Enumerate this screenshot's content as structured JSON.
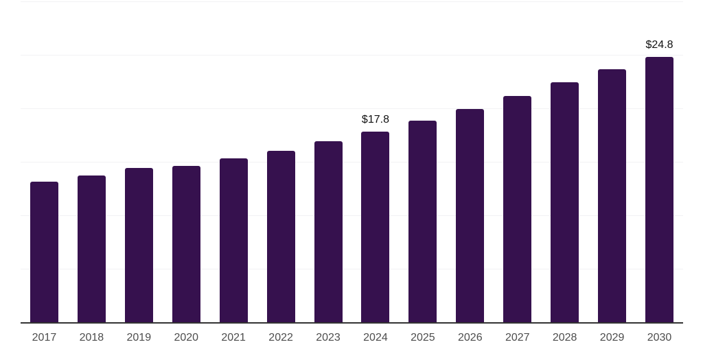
{
  "chart_data": {
    "type": "bar",
    "title": "",
    "xlabel": "",
    "ylabel": "",
    "categories": [
      "2017",
      "2018",
      "2019",
      "2020",
      "2021",
      "2022",
      "2023",
      "2024",
      "2025",
      "2026",
      "2027",
      "2028",
      "2029",
      "2030"
    ],
    "values": [
      13.1,
      13.7,
      14.4,
      14.6,
      15.3,
      16.0,
      16.9,
      17.8,
      18.8,
      19.9,
      21.1,
      22.4,
      23.6,
      24.8
    ],
    "annotations": [
      {
        "category": "2024",
        "text": "$17.8"
      },
      {
        "category": "2030",
        "text": "$24.8"
      }
    ],
    "ylim": [
      0,
      30
    ],
    "grid_step": 5,
    "grid": "horizontal",
    "legend_position": "none",
    "y_tick_labels_visible": false,
    "colors": {
      "bar": "#36114E",
      "gridline": "#f2f2f4",
      "axis_line": "#333333",
      "tick_label": "#4d4d4d",
      "value_label": "#111111",
      "background": "#ffffff"
    }
  }
}
